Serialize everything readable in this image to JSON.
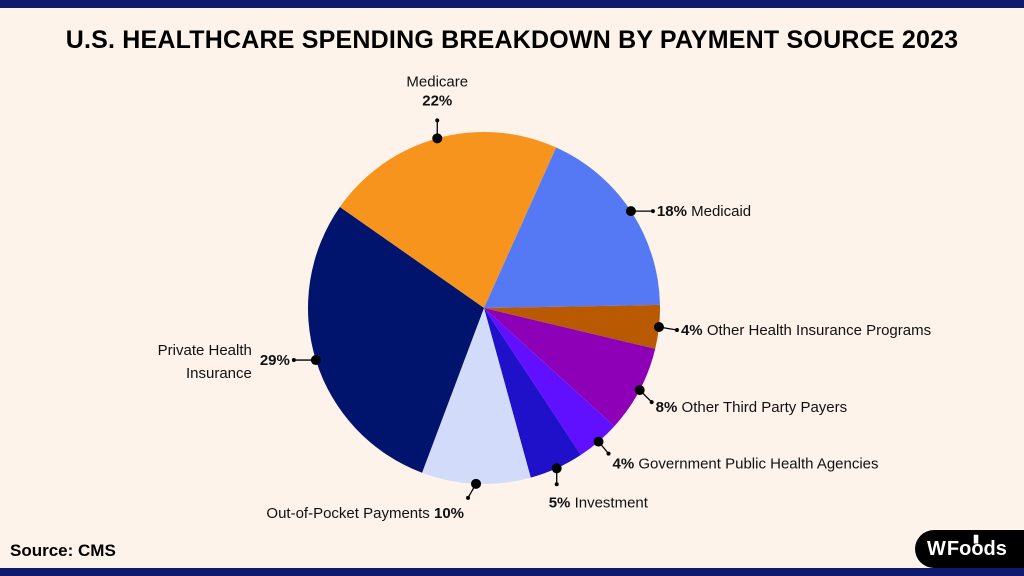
{
  "title": "U.S. HEALTHCARE SPENDING BREAKDOWN BY PAYMENT SOURCE 2023",
  "source": "Source: CMS",
  "logo_text": "Foods",
  "logo_mark": "W",
  "chart_data": {
    "type": "pie",
    "title": "U.S. HEALTHCARE SPENDING BREAKDOWN BY PAYMENT SOURCE 2023",
    "slices": [
      {
        "label": "Medicare",
        "value": 22,
        "pct_label": "22%",
        "color": "#f7941d"
      },
      {
        "label": "Medicaid",
        "value": 18,
        "pct_label": "18%",
        "color": "#5579f5"
      },
      {
        "label": "Other Health Insurance Programs",
        "value": 4,
        "pct_label": "4%",
        "color": "#b95a03"
      },
      {
        "label": "Other Third Party Payers",
        "value": 8,
        "pct_label": "8%",
        "color": "#8d00b8"
      },
      {
        "label": "Government Public Health Agencies",
        "value": 4,
        "pct_label": "4%",
        "color": "#6010ff"
      },
      {
        "label": "Investment",
        "value": 5,
        "pct_label": "5%",
        "color": "#1f11c9"
      },
      {
        "label": "Out-of-Pocket Payments",
        "value": 10,
        "pct_label": "10%",
        "color": "#d3dbfb"
      },
      {
        "label": "Private Health Insurance",
        "value": 29,
        "pct_label": "29%",
        "color": "#00146e"
      }
    ]
  }
}
